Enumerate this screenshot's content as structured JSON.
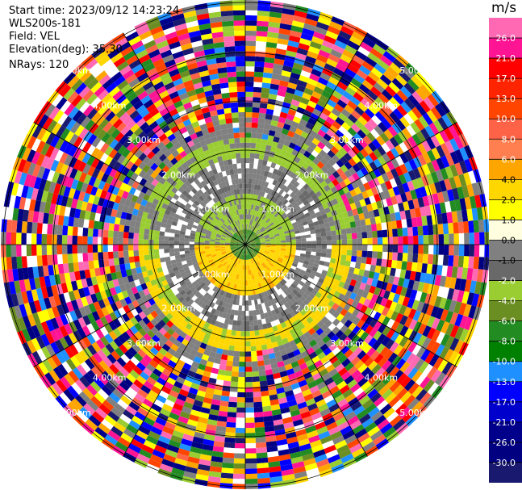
{
  "header": {
    "start_time": "Start time: 2023/09/12 14:23:24",
    "instrument": "WLS200s-181",
    "field": "Field: VEL",
    "elevation": "Elevation(deg): 35.30",
    "nrays": "NRays: 120"
  },
  "colorbar": {
    "unit": "m/s",
    "ticks": [
      "26.0",
      "21.0",
      "17.0",
      "13.0",
      "10.0",
      "8.0",
      "6.0",
      "4.0",
      "2.0",
      "1.0",
      "0.0",
      "-1.0",
      "-2.0",
      "-4.0",
      "-6.0",
      "-8.0",
      "-10.0",
      "-13.0",
      "-17.0",
      "-21.0",
      "-26.0",
      "-30.0"
    ],
    "colors": [
      "#ff69b4",
      "#ff1493",
      "#ff0000",
      "#ff2400",
      "#ff4500",
      "#ff6347",
      "#ff7f50",
      "#ffa500",
      "#ffd700",
      "#ffff00",
      "#ffffe0",
      "#808080",
      "#696969",
      "#9acd32",
      "#6b8e23",
      "#228b22",
      "#008000",
      "#1e90ff",
      "#0000ff",
      "#0000cd",
      "#00008b",
      "#000080",
      "#191970"
    ]
  },
  "range_rings": {
    "labels": [
      "1.00km",
      "2.00km",
      "3.00km",
      "4.00km",
      "5.00km"
    ]
  }
}
